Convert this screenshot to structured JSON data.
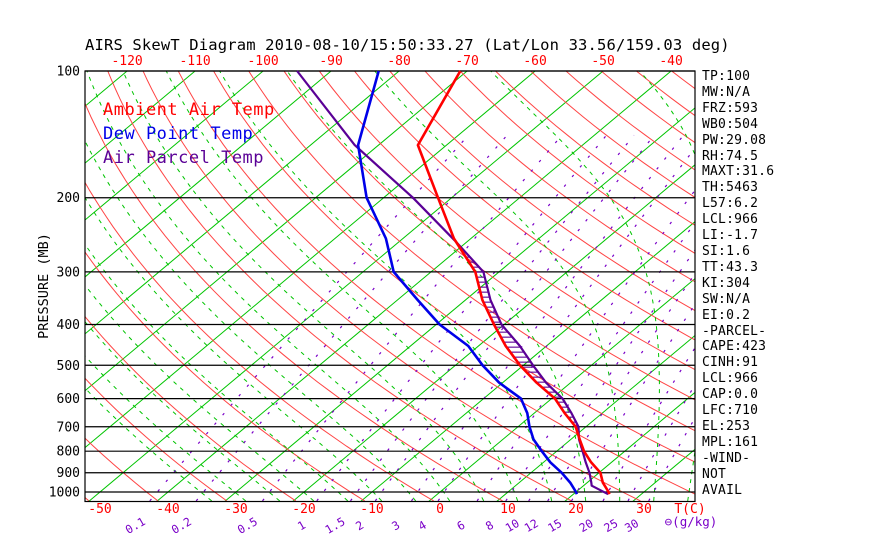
{
  "title": "AIRS SkewT Diagram 2010-08-10/15:50:33.27 (Lat/Lon 33.56/159.03 deg)",
  "stats": [
    "TP:100",
    "MW:N/A",
    "FRZ:593",
    "WB0:504",
    "PW:29.08",
    "RH:74.5",
    "MAXT:31.6",
    "TH:5463",
    "L57:6.2",
    "LCL:966",
    "LI:-1.7",
    "SI:1.6",
    "TT:43.3",
    "KI:304",
    "SW:N/A",
    "EI:0.2",
    "-PARCEL-",
    "CAPE:423",
    "CINH:91",
    "LCL:966",
    "CAP:0.0",
    "LFC:710",
    "EL:253",
    "MPL:161",
    "-WIND-",
    "NOT",
    "AVAIL"
  ],
  "colors": {
    "isotherm_green": "#00c400",
    "dry_adiabat_red": "#ff4444",
    "pressure_line_black": "#000000",
    "mixing_ratio_purple": "#7a00c8",
    "ambient_red": "#ff0000",
    "dewpoint_blue": "#0000e8",
    "parcel_purple": "#5a0096"
  },
  "chart_data": {
    "type": "line",
    "title": "AIRS SkewT Diagram 2010-08-10/15:50:33.27 (Lat/Lon 33.56/159.03 deg)",
    "x_axis": {
      "label": "T(C)",
      "ticks_top": [
        -120,
        -110,
        -100,
        -90,
        -80,
        -70,
        -60,
        -50,
        -40
      ],
      "ticks_bottom": [
        -50,
        -40,
        -30,
        -20,
        -10,
        0,
        10,
        20,
        30
      ]
    },
    "y_axis": {
      "label": "PRESSURE (MB)",
      "scale": "log",
      "ticks": [
        100,
        200,
        300,
        400,
        500,
        600,
        700,
        800,
        900,
        1000
      ],
      "range": [
        100,
        1050
      ]
    },
    "mixing_ratio": {
      "label": "⊖(g/kg)",
      "values": [
        0.1,
        0.2,
        0.5,
        1,
        1.5,
        2,
        3,
        4,
        6,
        8,
        10,
        12,
        15,
        20,
        25,
        30
      ]
    },
    "legend_position": "top-left",
    "grid": true,
    "series": [
      {
        "name": "Ambient Air Temp",
        "color": "#ff0000",
        "pressure_mb": [
          100,
          150,
          200,
          250,
          300,
          350,
          400,
          450,
          500,
          550,
          600,
          650,
          700,
          750,
          800,
          850,
          900,
          950,
          1000,
          1012
        ],
        "temperature_c": [
          -71,
          -64.2,
          -52,
          -42.5,
          -33.5,
          -27.5,
          -21.5,
          -16,
          -10.5,
          -5,
          0.5,
          4.5,
          8.5,
          11.3,
          14,
          17,
          20.2,
          22.3,
          24.8,
          25.3
        ]
      },
      {
        "name": "Dew Point Temp",
        "color": "#0000e8",
        "pressure_mb": [
          100,
          150,
          200,
          250,
          300,
          350,
          400,
          450,
          500,
          550,
          600,
          650,
          700,
          750,
          800,
          850,
          900,
          950,
          1000,
          1012
        ],
        "temperature_c": [
          -83,
          -73,
          -62.5,
          -52.5,
          -45.5,
          -37,
          -29.5,
          -21.5,
          -16,
          -10.5,
          -4.5,
          -1,
          1.7,
          4.5,
          7.8,
          11,
          14.5,
          17.5,
          20,
          20.5
        ]
      },
      {
        "name": "Air Parcel Temp",
        "color": "#5a0096",
        "pressure_mb": [
          100,
          150,
          200,
          255,
          300,
          350,
          400,
          450,
          500,
          550,
          600,
          650,
          700,
          750,
          800,
          850,
          900,
          950,
          966,
          1012
        ],
        "temperature_c": [
          -95,
          -73.5,
          -55.7,
          -41.5,
          -32.3,
          -26.3,
          -20.4,
          -13.9,
          -8.6,
          -3.6,
          1.6,
          5.5,
          8.9,
          11.2,
          13.8,
          16.2,
          18.6,
          20.6,
          21.2,
          25.1
        ]
      }
    ],
    "cape_hatch": {
      "top_pressure": 255,
      "bottom_pressure": 705,
      "color": "#5a0096"
    }
  }
}
